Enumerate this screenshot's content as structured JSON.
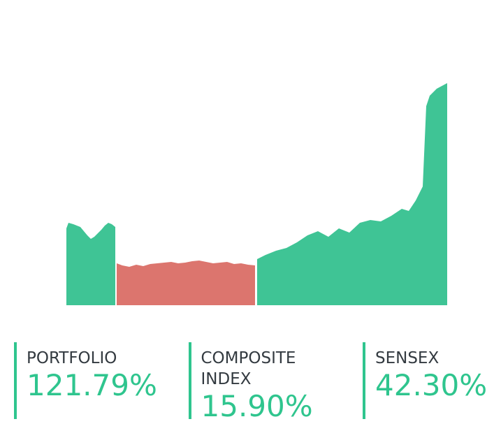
{
  "chart_data": {
    "type": "area",
    "xlim": [
      0,
      545
    ],
    "ylim": [
      0,
      330
    ],
    "series": [
      {
        "color": "#3fc495",
        "x": [
          0,
          3,
          10,
          20,
          30,
          35,
          40,
          50,
          55,
          60,
          65,
          70
        ],
        "values": [
          110,
          118,
          116,
          112,
          100,
          95,
          98,
          108,
          114,
          118,
          116,
          112
        ]
      },
      {
        "color": "#dc756e",
        "x": [
          72,
          80,
          90,
          100,
          110,
          120,
          130,
          140,
          150,
          160,
          170,
          180,
          190,
          200,
          210,
          220,
          230,
          240,
          250,
          260,
          270
        ],
        "values": [
          60,
          57,
          55,
          58,
          56,
          59,
          60,
          61,
          62,
          60,
          61,
          63,
          64,
          62,
          60,
          61,
          62,
          59,
          60,
          58,
          57
        ]
      },
      {
        "color": "#3fc495",
        "x": [
          273,
          285,
          300,
          315,
          330,
          345,
          360,
          375,
          390,
          405,
          420,
          435,
          450,
          465,
          480,
          490,
          500,
          505,
          510,
          515,
          520,
          530,
          545
        ],
        "values": [
          66,
          72,
          78,
          82,
          90,
          100,
          106,
          98,
          110,
          104,
          118,
          122,
          120,
          128,
          138,
          135,
          150,
          160,
          170,
          285,
          300,
          310,
          318
        ]
      }
    ]
  },
  "stats": [
    {
      "label": "PORTFOLIO",
      "value": "121.79%"
    },
    {
      "label": "COMPOSITE INDEX",
      "value": "15.90%"
    },
    {
      "label": "SENSEX",
      "value": "42.30%"
    }
  ]
}
